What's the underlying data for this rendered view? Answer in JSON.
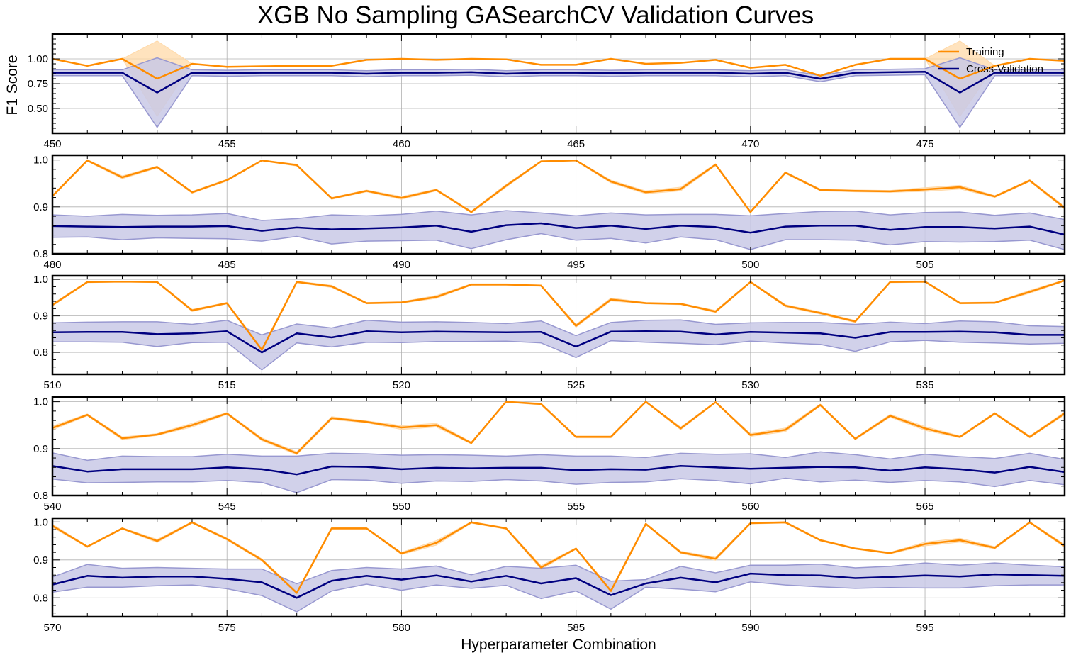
{
  "chart_data": {
    "type": "line",
    "title": "XGB No Sampling GASearchCV Validation Curves",
    "xlabel": "Hyperparameter Combination",
    "ylabel": "F1 Score",
    "legend": {
      "placement": "top-right",
      "entries": [
        "Training",
        "Cross-Validation"
      ]
    },
    "colors": {
      "training": "#ff8c00",
      "training_band": "#ffd9a8",
      "cv": "#000080",
      "cv_band": "#c9c9e6",
      "cv_band_edge": "#9898d0",
      "grid": "#b0b0b0"
    },
    "grid": true,
    "panels": [
      {
        "x_start": 450,
        "x_end": 479,
        "xlim": [
          450,
          479
        ],
        "xticks": [
          450,
          455,
          460,
          465,
          470,
          475
        ],
        "ylim": [
          0.25,
          1.25
        ],
        "yticks": [
          0.5,
          0.75,
          1.0
        ],
        "ytick_labels": [
          "0.50",
          "0.75",
          "1.00"
        ],
        "series": [
          {
            "name": "Training",
            "values": [
              1.0,
              0.93,
              1.0,
              0.8,
              0.95,
              0.92,
              0.925,
              0.93,
              0.93,
              0.99,
              1.0,
              0.99,
              1.0,
              0.995,
              0.94,
              0.94,
              1.0,
              0.95,
              0.96,
              0.99,
              0.91,
              0.94,
              0.83,
              0.94,
              1.0,
              1.0,
              0.8,
              0.93,
              1.0,
              0.98
            ],
            "band": [
              0.0,
              0.0,
              0.0,
              0.38,
              0.0,
              0.0,
              0.0,
              0.0,
              0.0,
              0.0,
              0.0,
              0.0,
              0.0,
              0.0,
              0.0,
              0.0,
              0.0,
              0.0,
              0.0,
              0.0,
              0.0,
              0.0,
              0.0,
              0.0,
              0.0,
              0.0,
              0.38,
              0.0,
              0.0,
              0.0
            ]
          },
          {
            "name": "Cross-Validation",
            "values": [
              0.86,
              0.86,
              0.86,
              0.66,
              0.86,
              0.855,
              0.86,
              0.86,
              0.86,
              0.85,
              0.86,
              0.86,
              0.865,
              0.85,
              0.86,
              0.86,
              0.855,
              0.86,
              0.86,
              0.86,
              0.85,
              0.86,
              0.8,
              0.86,
              0.865,
              0.87,
              0.66,
              0.86,
              0.86,
              0.86
            ],
            "band": [
              0.03,
              0.03,
              0.03,
              0.35,
              0.03,
              0.03,
              0.03,
              0.03,
              0.03,
              0.03,
              0.03,
              0.03,
              0.03,
              0.03,
              0.03,
              0.03,
              0.03,
              0.03,
              0.03,
              0.03,
              0.03,
              0.03,
              0.03,
              0.03,
              0.03,
              0.03,
              0.35,
              0.03,
              0.03,
              0.03
            ]
          }
        ]
      },
      {
        "x_start": 480,
        "x_end": 509,
        "xlim": [
          480,
          509
        ],
        "xticks": [
          480,
          485,
          490,
          495,
          500,
          505
        ],
        "ylim": [
          0.8,
          1.01
        ],
        "yticks": [
          0.8,
          0.9,
          1.0
        ],
        "ytick_labels": [
          "0.8",
          "0.9",
          "1.0"
        ],
        "series": [
          {
            "name": "Training",
            "values": [
              0.923,
              0.999,
              0.963,
              0.985,
              0.931,
              0.957,
              0.999,
              0.989,
              0.918,
              0.934,
              0.919,
              0.936,
              0.889,
              0.945,
              0.997,
              0.999,
              0.954,
              0.931,
              0.938,
              0.99,
              0.889,
              0.973,
              0.936,
              0.934,
              0.933,
              0.937,
              0.942,
              0.922,
              0.956,
              0.898
            ],
            "band": [
              0.002,
              0.002,
              0.003,
              0.002,
              0.002,
              0.002,
              0.001,
              0.002,
              0.002,
              0.002,
              0.003,
              0.002,
              0.002,
              0.003,
              0.001,
              0.001,
              0.003,
              0.003,
              0.004,
              0.002,
              0.002,
              0.002,
              0.002,
              0.002,
              0.002,
              0.004,
              0.004,
              0.002,
              0.002,
              0.003
            ]
          },
          {
            "name": "Cross-Validation",
            "values": [
              0.859,
              0.858,
              0.857,
              0.858,
              0.858,
              0.859,
              0.849,
              0.856,
              0.852,
              0.854,
              0.856,
              0.86,
              0.847,
              0.861,
              0.865,
              0.855,
              0.86,
              0.853,
              0.86,
              0.857,
              0.845,
              0.858,
              0.86,
              0.86,
              0.851,
              0.857,
              0.857,
              0.854,
              0.858,
              0.841
            ],
            "band": [
              0.024,
              0.022,
              0.027,
              0.024,
              0.025,
              0.027,
              0.022,
              0.019,
              0.031,
              0.027,
              0.028,
              0.031,
              0.036,
              0.031,
              0.022,
              0.026,
              0.027,
              0.03,
              0.024,
              0.027,
              0.036,
              0.028,
              0.03,
              0.031,
              0.032,
              0.031,
              0.032,
              0.028,
              0.029,
              0.032
            ]
          }
        ]
      },
      {
        "x_start": 510,
        "x_end": 539,
        "xlim": [
          510,
          539
        ],
        "xticks": [
          510,
          515,
          520,
          525,
          530,
          535
        ],
        "ylim": [
          0.74,
          1.01
        ],
        "yticks": [
          0.8,
          0.9,
          1.0
        ],
        "ytick_labels": [
          "0.8",
          "0.9",
          "1.0"
        ],
        "series": [
          {
            "name": "Training",
            "values": [
              0.93,
              0.993,
              0.994,
              0.993,
              0.915,
              0.935,
              0.807,
              0.993,
              0.981,
              0.935,
              0.937,
              0.952,
              0.986,
              0.986,
              0.983,
              0.873,
              0.945,
              0.935,
              0.933,
              0.912,
              0.993,
              0.928,
              0.908,
              0.885,
              0.993,
              0.994,
              0.935,
              0.936,
              0.966,
              0.997
            ],
            "band": [
              0.003,
              0.002,
              0.001,
              0.002,
              0.003,
              0.002,
              0.005,
              0.002,
              0.003,
              0.002,
              0.002,
              0.004,
              0.002,
              0.002,
              0.002,
              0.004,
              0.004,
              0.002,
              0.002,
              0.003,
              0.002,
              0.003,
              0.003,
              0.003,
              0.002,
              0.002,
              0.002,
              0.002,
              0.004,
              0.002
            ]
          },
          {
            "name": "Cross-Validation",
            "values": [
              0.855,
              0.856,
              0.856,
              0.85,
              0.852,
              0.858,
              0.8,
              0.852,
              0.841,
              0.858,
              0.855,
              0.857,
              0.856,
              0.855,
              0.856,
              0.816,
              0.857,
              0.858,
              0.857,
              0.849,
              0.856,
              0.854,
              0.852,
              0.84,
              0.856,
              0.856,
              0.857,
              0.855,
              0.848,
              0.848
            ],
            "band": [
              0.026,
              0.027,
              0.028,
              0.034,
              0.025,
              0.03,
              0.048,
              0.026,
              0.026,
              0.03,
              0.028,
              0.027,
              0.026,
              0.024,
              0.03,
              0.03,
              0.025,
              0.03,
              0.032,
              0.028,
              0.025,
              0.028,
              0.03,
              0.037,
              0.027,
              0.023,
              0.029,
              0.029,
              0.025,
              0.023
            ]
          }
        ]
      },
      {
        "x_start": 540,
        "x_end": 569,
        "xlim": [
          540,
          569
        ],
        "xticks": [
          540,
          545,
          550,
          555,
          560,
          565
        ],
        "ylim": [
          0.8,
          1.01
        ],
        "yticks": [
          0.8,
          0.9,
          1.0
        ],
        "ytick_labels": [
          "0.8",
          "0.9",
          "1.0"
        ],
        "series": [
          {
            "name": "Training",
            "values": [
              0.944,
              0.972,
              0.922,
              0.93,
              0.95,
              0.975,
              0.92,
              0.89,
              0.965,
              0.957,
              0.945,
              0.95,
              0.912,
              1.0,
              0.995,
              0.925,
              0.925,
              1.0,
              0.943,
              0.999,
              0.929,
              0.94,
              0.993,
              0.921,
              0.97,
              0.943,
              0.925,
              0.975,
              0.925,
              0.975
            ],
            "band": [
              0.004,
              0.002,
              0.003,
              0.002,
              0.004,
              0.002,
              0.003,
              0.003,
              0.003,
              0.002,
              0.004,
              0.004,
              0.002,
              0.001,
              0.002,
              0.002,
              0.002,
              0.001,
              0.003,
              0.001,
              0.003,
              0.004,
              0.002,
              0.002,
              0.003,
              0.004,
              0.002,
              0.002,
              0.002,
              0.003
            ]
          },
          {
            "name": "Cross-Validation",
            "values": [
              0.863,
              0.851,
              0.856,
              0.856,
              0.856,
              0.86,
              0.856,
              0.845,
              0.862,
              0.861,
              0.856,
              0.859,
              0.858,
              0.859,
              0.859,
              0.854,
              0.856,
              0.855,
              0.863,
              0.86,
              0.857,
              0.859,
              0.861,
              0.86,
              0.853,
              0.86,
              0.856,
              0.849,
              0.861,
              0.85
            ],
            "band": [
              0.028,
              0.024,
              0.028,
              0.027,
              0.027,
              0.028,
              0.028,
              0.039,
              0.028,
              0.028,
              0.03,
              0.028,
              0.028,
              0.025,
              0.028,
              0.03,
              0.028,
              0.026,
              0.027,
              0.028,
              0.032,
              0.022,
              0.032,
              0.027,
              0.025,
              0.028,
              0.027,
              0.03,
              0.029,
              0.027
            ]
          }
        ]
      },
      {
        "x_start": 570,
        "x_end": 599,
        "xlim": [
          570,
          599
        ],
        "xticks": [
          570,
          575,
          580,
          585,
          590,
          595
        ],
        "ylim": [
          0.75,
          1.01
        ],
        "yticks": [
          0.8,
          0.9,
          1.0
        ],
        "ytick_labels": [
          "0.8",
          "0.9",
          "1.0"
        ],
        "series": [
          {
            "name": "Training",
            "values": [
              0.99,
              0.935,
              0.983,
              0.95,
              0.999,
              0.955,
              0.9,
              0.813,
              0.983,
              0.983,
              0.917,
              0.945,
              0.999,
              0.983,
              0.88,
              0.93,
              0.818,
              0.995,
              0.92,
              0.903,
              0.997,
              0.999,
              0.952,
              0.93,
              0.918,
              0.942,
              0.952,
              0.932,
              0.999,
              0.937
            ],
            "band": [
              0.004,
              0.002,
              0.002,
              0.004,
              0.002,
              0.003,
              0.003,
              0.004,
              0.002,
              0.002,
              0.003,
              0.006,
              0.002,
              0.002,
              0.005,
              0.002,
              0.005,
              0.002,
              0.003,
              0.004,
              0.002,
              0.002,
              0.002,
              0.002,
              0.002,
              0.005,
              0.005,
              0.003,
              0.002,
              0.004
            ]
          },
          {
            "name": "Cross-Validation",
            "values": [
              0.835,
              0.858,
              0.853,
              0.856,
              0.856,
              0.85,
              0.841,
              0.8,
              0.845,
              0.858,
              0.848,
              0.859,
              0.843,
              0.858,
              0.838,
              0.852,
              0.807,
              0.838,
              0.853,
              0.841,
              0.864,
              0.86,
              0.859,
              0.852,
              0.855,
              0.859,
              0.856,
              0.862,
              0.86,
              0.858
            ],
            "band": [
              0.02,
              0.03,
              0.025,
              0.024,
              0.022,
              0.026,
              0.035,
              0.037,
              0.027,
              0.022,
              0.028,
              0.025,
              0.018,
              0.025,
              0.04,
              0.034,
              0.037,
              0.01,
              0.03,
              0.025,
              0.022,
              0.026,
              0.03,
              0.027,
              0.028,
              0.033,
              0.03,
              0.03,
              0.026,
              0.024
            ]
          }
        ]
      }
    ]
  }
}
